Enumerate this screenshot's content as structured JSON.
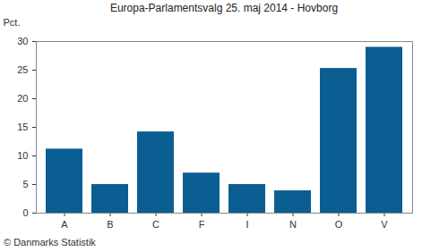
{
  "chart_data": {
    "type": "bar",
    "title": "Europa-Parlamentsvalg 25. maj 2014 - Hovborg",
    "y_label": "Pct.",
    "caption": "© Danmarks Statistik",
    "categories": [
      "A",
      "B",
      "C",
      "F",
      "I",
      "N",
      "O",
      "V"
    ],
    "values": [
      11.2,
      5.0,
      14.2,
      7.0,
      5.0,
      3.9,
      25.3,
      29.0
    ],
    "color": "#0b5e91",
    "ylim": [
      0,
      30
    ],
    "yticks": [
      0,
      5,
      10,
      15,
      20,
      25,
      30
    ],
    "grid": false
  }
}
